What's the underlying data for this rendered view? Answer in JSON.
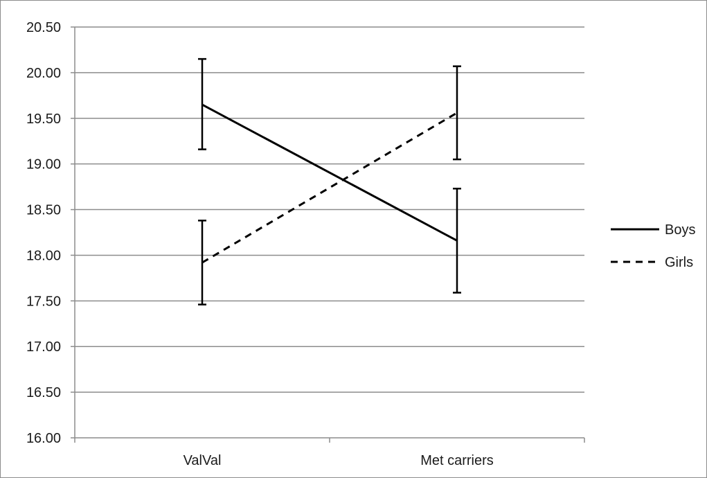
{
  "chart_data": {
    "type": "line",
    "title": "",
    "xlabel": "",
    "ylabel": "",
    "categories": [
      "ValVal",
      "Met carriers"
    ],
    "ylim": [
      16.0,
      20.5
    ],
    "ytick_step": 0.5,
    "ytick_labels": [
      "16.00",
      "16.50",
      "17.00",
      "17.50",
      "18.00",
      "18.50",
      "19.00",
      "19.50",
      "20.00",
      "20.50"
    ],
    "grid": true,
    "legend_position": "right",
    "series": [
      {
        "name": "Boys",
        "style": "solid",
        "color": "#000000",
        "values": [
          19.65,
          18.16
        ],
        "error_low": [
          19.16,
          17.59
        ],
        "error_high": [
          20.15,
          18.73
        ]
      },
      {
        "name": "Girls",
        "style": "dashed",
        "color": "#000000",
        "values": [
          17.92,
          19.56
        ],
        "error_low": [
          17.46,
          19.05
        ],
        "error_high": [
          18.38,
          20.07
        ]
      }
    ]
  }
}
